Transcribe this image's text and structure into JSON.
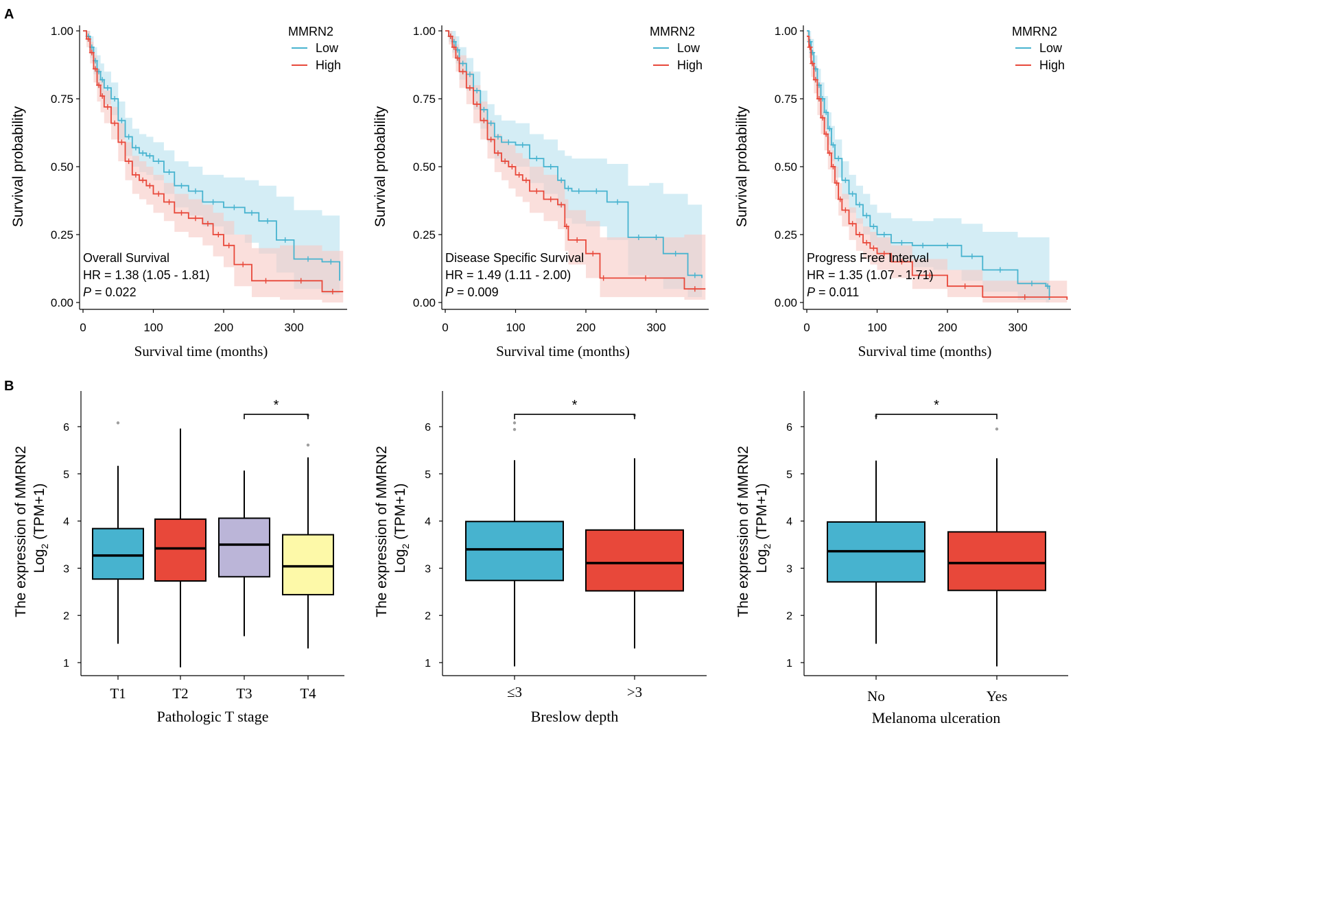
{
  "panel_labels": [
    "A",
    "B"
  ],
  "colors": {
    "low": "#47b3cf",
    "high": "#e8483a",
    "low_ci": "#cdeaf3",
    "high_ci": "#f6c9c4",
    "axis": "#000000",
    "outlier": "#9e9e9e"
  },
  "chart_data": [
    {
      "type": "line",
      "subtype": "kaplan-meier",
      "annotation": "Overall Survival",
      "hr": "HR = 1.38 (1.05 - 1.81)",
      "p_label": "P",
      "p_value": " = 0.022",
      "xlabel": "Survival time (months)",
      "ylabel": "Survival probability",
      "xlim": [
        0,
        370
      ],
      "ylim": [
        0,
        1
      ],
      "xticks": [
        0,
        100,
        200,
        300
      ],
      "yticks": [
        "0.00",
        "0.25",
        "0.50",
        "0.75",
        "1.00"
      ],
      "legend": {
        "title": "MMRN2",
        "position": "top-right",
        "items": [
          "Low",
          "High"
        ]
      },
      "series": [
        {
          "name": "Low",
          "color": "low",
          "x": [
            0,
            5,
            10,
            15,
            20,
            25,
            30,
            40,
            50,
            60,
            70,
            80,
            90,
            100,
            115,
            130,
            150,
            170,
            200,
            230,
            250,
            275,
            300,
            340,
            365
          ],
          "y": [
            1.0,
            0.98,
            0.94,
            0.89,
            0.85,
            0.82,
            0.79,
            0.75,
            0.67,
            0.61,
            0.57,
            0.55,
            0.54,
            0.52,
            0.48,
            0.43,
            0.41,
            0.37,
            0.35,
            0.33,
            0.3,
            0.23,
            0.16,
            0.15,
            0.08
          ],
          "ci_upper": [
            1.0,
            1.0,
            0.98,
            0.94,
            0.91,
            0.88,
            0.85,
            0.81,
            0.74,
            0.68,
            0.64,
            0.62,
            0.61,
            0.59,
            0.56,
            0.52,
            0.5,
            0.47,
            0.46,
            0.45,
            0.43,
            0.39,
            0.34,
            0.32,
            0.28
          ],
          "ci_lower": [
            1.0,
            0.96,
            0.9,
            0.84,
            0.79,
            0.76,
            0.73,
            0.69,
            0.6,
            0.54,
            0.5,
            0.48,
            0.47,
            0.45,
            0.4,
            0.35,
            0.32,
            0.28,
            0.25,
            0.22,
            0.18,
            0.11,
            0.05,
            0.03,
            0.01
          ]
        },
        {
          "name": "High",
          "color": "high",
          "x": [
            0,
            5,
            10,
            15,
            20,
            25,
            30,
            40,
            50,
            60,
            70,
            80,
            90,
            100,
            115,
            130,
            150,
            170,
            185,
            200,
            215,
            240,
            280,
            340,
            370
          ],
          "y": [
            1.0,
            0.97,
            0.92,
            0.86,
            0.8,
            0.76,
            0.72,
            0.66,
            0.59,
            0.52,
            0.47,
            0.45,
            0.43,
            0.4,
            0.37,
            0.33,
            0.31,
            0.29,
            0.25,
            0.21,
            0.14,
            0.08,
            0.08,
            0.04,
            0.04
          ],
          "ci_upper": [
            1.0,
            1.0,
            0.96,
            0.91,
            0.86,
            0.82,
            0.78,
            0.72,
            0.66,
            0.59,
            0.54,
            0.52,
            0.5,
            0.47,
            0.44,
            0.4,
            0.38,
            0.36,
            0.33,
            0.3,
            0.25,
            0.2,
            0.21,
            0.19,
            0.19
          ],
          "ci_lower": [
            1.0,
            0.94,
            0.88,
            0.81,
            0.74,
            0.7,
            0.66,
            0.6,
            0.52,
            0.45,
            0.4,
            0.38,
            0.36,
            0.33,
            0.3,
            0.26,
            0.24,
            0.21,
            0.17,
            0.13,
            0.06,
            0.02,
            0.01,
            0.0,
            0.0
          ]
        }
      ]
    },
    {
      "type": "line",
      "subtype": "kaplan-meier",
      "annotation": "Disease Specific Survival",
      "hr": "HR = 1.49 (1.11 - 2.00)",
      "p_label": "P",
      "p_value": " = 0.009",
      "xlabel": "Survival time (months)",
      "ylabel": "Survival probability",
      "xlim": [
        0,
        370
      ],
      "ylim": [
        0,
        1
      ],
      "xticks": [
        0,
        100,
        200,
        300
      ],
      "yticks": [
        "0.00",
        "0.25",
        "0.50",
        "0.75",
        "1.00"
      ],
      "legend": {
        "title": "MMRN2",
        "position": "top-right",
        "items": [
          "Low",
          "High"
        ]
      },
      "series": [
        {
          "name": "Low",
          "color": "low",
          "x": [
            0,
            5,
            10,
            15,
            20,
            30,
            40,
            50,
            60,
            70,
            80,
            100,
            120,
            140,
            160,
            170,
            180,
            200,
            230,
            260,
            290,
            310,
            345,
            365
          ],
          "y": [
            1.0,
            0.98,
            0.96,
            0.93,
            0.88,
            0.84,
            0.78,
            0.71,
            0.66,
            0.61,
            0.59,
            0.58,
            0.53,
            0.5,
            0.45,
            0.42,
            0.41,
            0.41,
            0.37,
            0.24,
            0.24,
            0.18,
            0.1,
            0.09
          ],
          "ci_upper": [
            1.0,
            1.0,
            1.0,
            0.98,
            0.94,
            0.9,
            0.85,
            0.78,
            0.73,
            0.69,
            0.67,
            0.66,
            0.62,
            0.6,
            0.56,
            0.54,
            0.53,
            0.53,
            0.51,
            0.43,
            0.44,
            0.4,
            0.36,
            0.36
          ],
          "ci_lower": [
            1.0,
            0.96,
            0.92,
            0.88,
            0.82,
            0.78,
            0.71,
            0.64,
            0.59,
            0.53,
            0.51,
            0.5,
            0.44,
            0.4,
            0.35,
            0.31,
            0.29,
            0.28,
            0.23,
            0.1,
            0.09,
            0.05,
            0.02,
            0.01
          ]
        },
        {
          "name": "High",
          "color": "high",
          "x": [
            0,
            5,
            10,
            15,
            20,
            30,
            40,
            50,
            60,
            70,
            80,
            90,
            100,
            110,
            120,
            140,
            160,
            170,
            175,
            200,
            220,
            230,
            340,
            370
          ],
          "y": [
            1.0,
            0.98,
            0.94,
            0.9,
            0.85,
            0.79,
            0.73,
            0.67,
            0.6,
            0.55,
            0.52,
            0.5,
            0.47,
            0.45,
            0.41,
            0.38,
            0.36,
            0.28,
            0.23,
            0.18,
            0.09,
            0.09,
            0.05,
            0.05
          ],
          "ci_upper": [
            1.0,
            1.0,
            0.98,
            0.95,
            0.91,
            0.85,
            0.8,
            0.74,
            0.67,
            0.62,
            0.6,
            0.58,
            0.55,
            0.53,
            0.5,
            0.47,
            0.45,
            0.38,
            0.34,
            0.3,
            0.24,
            0.24,
            0.25,
            0.25
          ],
          "ci_lower": [
            1.0,
            0.95,
            0.9,
            0.85,
            0.79,
            0.73,
            0.66,
            0.6,
            0.53,
            0.48,
            0.45,
            0.42,
            0.39,
            0.37,
            0.33,
            0.3,
            0.27,
            0.19,
            0.14,
            0.09,
            0.02,
            0.02,
            0.01,
            0.01
          ]
        }
      ]
    },
    {
      "type": "line",
      "subtype": "kaplan-meier",
      "annotation": "Progress Free Interval",
      "hr": "HR = 1.35 (1.07 - 1.71)",
      "p_label": "P",
      "p_value": " = 0.011",
      "xlabel": "Survival time (months)",
      "ylabel": "Survival probability",
      "xlim": [
        0,
        370
      ],
      "ylim": [
        0,
        1
      ],
      "xticks": [
        0,
        100,
        200,
        300
      ],
      "yticks": [
        "0.00",
        "0.25",
        "0.50",
        "0.75",
        "1.00"
      ],
      "legend": {
        "title": "MMRN2",
        "position": "top-right",
        "items": [
          "Low",
          "High"
        ]
      },
      "series": [
        {
          "name": "Low",
          "color": "low",
          "x": [
            0,
            3,
            6,
            10,
            15,
            20,
            25,
            30,
            35,
            40,
            50,
            60,
            70,
            80,
            90,
            100,
            120,
            150,
            180,
            220,
            250,
            300,
            340,
            345
          ],
          "y": [
            1.0,
            0.96,
            0.92,
            0.86,
            0.8,
            0.75,
            0.7,
            0.64,
            0.58,
            0.53,
            0.45,
            0.4,
            0.36,
            0.32,
            0.28,
            0.25,
            0.22,
            0.21,
            0.21,
            0.17,
            0.12,
            0.07,
            0.06,
            0.01
          ],
          "ci_upper": [
            1.0,
            1.0,
            0.97,
            0.91,
            0.86,
            0.81,
            0.76,
            0.7,
            0.65,
            0.6,
            0.52,
            0.47,
            0.43,
            0.4,
            0.36,
            0.33,
            0.31,
            0.3,
            0.31,
            0.29,
            0.26,
            0.24,
            0.24,
            0.24
          ],
          "ci_lower": [
            1.0,
            0.92,
            0.87,
            0.81,
            0.74,
            0.69,
            0.64,
            0.58,
            0.52,
            0.46,
            0.38,
            0.33,
            0.29,
            0.25,
            0.21,
            0.18,
            0.15,
            0.13,
            0.12,
            0.08,
            0.04,
            0.01,
            0.0,
            0.0
          ]
        },
        {
          "name": "High",
          "color": "high",
          "x": [
            0,
            3,
            6,
            10,
            15,
            20,
            25,
            30,
            35,
            40,
            45,
            50,
            60,
            70,
            80,
            90,
            100,
            120,
            150,
            200,
            250,
            370
          ],
          "y": [
            0.98,
            0.94,
            0.88,
            0.82,
            0.75,
            0.68,
            0.62,
            0.55,
            0.5,
            0.44,
            0.38,
            0.34,
            0.29,
            0.25,
            0.22,
            0.2,
            0.18,
            0.15,
            0.1,
            0.06,
            0.02,
            0.01
          ],
          "ci_upper": [
            1.0,
            0.98,
            0.93,
            0.87,
            0.81,
            0.74,
            0.68,
            0.61,
            0.56,
            0.5,
            0.44,
            0.4,
            0.35,
            0.31,
            0.28,
            0.26,
            0.24,
            0.21,
            0.16,
            0.12,
            0.08,
            0.07
          ],
          "ci_lower": [
            0.96,
            0.9,
            0.83,
            0.77,
            0.69,
            0.62,
            0.56,
            0.49,
            0.44,
            0.38,
            0.32,
            0.28,
            0.23,
            0.19,
            0.16,
            0.14,
            0.12,
            0.09,
            0.05,
            0.02,
            0.0,
            0.0
          ]
        }
      ]
    },
    {
      "type": "box",
      "xlabel": "Pathologic T stage",
      "ylabel_main": "The expression of MMRN2",
      "ylabel_sub_pre": "Log",
      "ylabel_sub_subscript": "2",
      "ylabel_sub_post": " (TPM+1)",
      "ylim": [
        0.8,
        6.6
      ],
      "yticks": [
        1,
        2,
        3,
        4,
        5,
        6
      ],
      "categories": [
        "T1",
        "T2",
        "T3",
        "T4"
      ],
      "box_colors": [
        "#47b3cf",
        "#e8483a",
        "#bbb5d8",
        "#fdf9a8"
      ],
      "boxes": [
        {
          "whisker_low": 1.4,
          "q1": 2.77,
          "median": 3.27,
          "q3": 3.84,
          "whisker_high": 5.17,
          "outliers": [
            6.08
          ]
        },
        {
          "whisker_low": 0.9,
          "q1": 2.73,
          "median": 3.42,
          "q3": 4.04,
          "whisker_high": 5.96,
          "outliers": []
        },
        {
          "whisker_low": 1.56,
          "q1": 2.82,
          "median": 3.5,
          "q3": 4.06,
          "whisker_high": 5.07,
          "outliers": []
        },
        {
          "whisker_low": 1.3,
          "q1": 2.44,
          "median": 3.04,
          "q3": 3.71,
          "whisker_high": 5.35,
          "outliers": [
            5.61,
            6.24
          ]
        }
      ],
      "significance": [
        {
          "from": 2,
          "to": 3,
          "y": 6.26,
          "label": "*"
        }
      ]
    },
    {
      "type": "box",
      "xlabel": "Breslow depth",
      "ylabel_main": "The expression of MMRN2",
      "ylabel_sub_pre": "Log",
      "ylabel_sub_subscript": "2",
      "ylabel_sub_post": " (TPM+1)",
      "ylim": [
        0.8,
        6.6
      ],
      "yticks": [
        1,
        2,
        3,
        4,
        5,
        6
      ],
      "categories": [
        "≤3",
        ">3"
      ],
      "box_colors": [
        "#47b3cf",
        "#e8483a"
      ],
      "boxes": [
        {
          "whisker_low": 0.92,
          "q1": 2.74,
          "median": 3.4,
          "q3": 3.99,
          "whisker_high": 5.29,
          "outliers": [
            5.94,
            6.08
          ]
        },
        {
          "whisker_low": 1.3,
          "q1": 2.52,
          "median": 3.11,
          "q3": 3.81,
          "whisker_high": 5.33,
          "outliers": [
            6.24
          ]
        }
      ],
      "significance": [
        {
          "from": 0,
          "to": 1,
          "y": 6.26,
          "label": "*"
        }
      ]
    },
    {
      "type": "box",
      "xlabel": "Melanoma ulceration",
      "ylabel_main": "The expression of MMRN2",
      "ylabel_sub_pre": "Log",
      "ylabel_sub_subscript": "2",
      "ylabel_sub_post": " (TPM+1)",
      "ylim": [
        0.8,
        6.6
      ],
      "yticks": [
        1,
        2,
        3,
        4,
        5,
        6
      ],
      "categories": [
        "No",
        "Yes"
      ],
      "box_colors": [
        "#47b3cf",
        "#e8483a"
      ],
      "boxes": [
        {
          "whisker_low": 1.4,
          "q1": 2.71,
          "median": 3.36,
          "q3": 3.98,
          "whisker_high": 5.28,
          "outliers": [
            6.22
          ]
        },
        {
          "whisker_low": 0.92,
          "q1": 2.53,
          "median": 3.11,
          "q3": 3.77,
          "whisker_high": 5.33,
          "outliers": [
            5.95
          ]
        }
      ],
      "significance": [
        {
          "from": 0,
          "to": 1,
          "y": 6.26,
          "label": "*"
        }
      ]
    }
  ]
}
